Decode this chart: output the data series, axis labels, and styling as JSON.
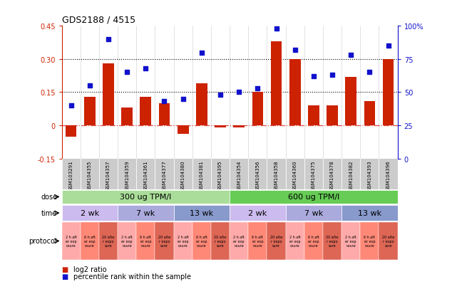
{
  "title": "GDS2188 / 4515",
  "samples": [
    "GSM103291",
    "GSM104355",
    "GSM104357",
    "GSM104359",
    "GSM104361",
    "GSM104377",
    "GSM104380",
    "GSM104381",
    "GSM104395",
    "GSM104354",
    "GSM104356",
    "GSM104358",
    "GSM104360",
    "GSM104375",
    "GSM104378",
    "GSM104382",
    "GSM104393",
    "GSM104396"
  ],
  "log2_ratio": [
    -0.05,
    0.13,
    0.28,
    0.08,
    0.13,
    0.1,
    -0.04,
    0.19,
    -0.01,
    -0.01,
    0.15,
    0.38,
    0.3,
    0.09,
    0.09,
    0.22,
    0.11,
    0.3
  ],
  "percentile": [
    40,
    55,
    90,
    65,
    68,
    43,
    45,
    80,
    48,
    50,
    53,
    98,
    82,
    62,
    63,
    78,
    65,
    85
  ],
  "bar_color": "#cc2200",
  "dot_color": "#1111cc",
  "zero_line_color": "#cc0000",
  "hline_color": "black",
  "yticks_left": [
    -0.15,
    0.0,
    0.15,
    0.3,
    0.45
  ],
  "ytick_labels_left": [
    "-0.15",
    "0",
    "0.15",
    "0.30",
    "0.45"
  ],
  "yticks_right": [
    0,
    25,
    50,
    75,
    100
  ],
  "ytick_labels_right": [
    "0",
    "25",
    "50",
    "75",
    "100%"
  ],
  "dose_spans": [
    [
      0,
      8,
      "300 ug TPM/l",
      "#aadd99"
    ],
    [
      9,
      17,
      "600 ug TPM/l",
      "#66cc55"
    ]
  ],
  "time_spans": [
    [
      0,
      2,
      "2 wk",
      "#ccbbee"
    ],
    [
      3,
      5,
      "7 wk",
      "#aaaadd"
    ],
    [
      6,
      8,
      "13 wk",
      "#8899cc"
    ],
    [
      9,
      11,
      "2 wk",
      "#ccbbee"
    ],
    [
      12,
      14,
      "7 wk",
      "#aaaadd"
    ],
    [
      15,
      17,
      "13 wk",
      "#8899cc"
    ]
  ],
  "protocol_labels": [
    "2 h aft\ner exp\nosure",
    "6 h aft\ner exp\nosure",
    "20 afte\nr expo\nsure",
    "2 h aft\ner exp\nosure",
    "6 h aft\ner exp\nosure",
    "20 afte\nr expo\nsure",
    "2 h aft\ner exp\nosure",
    "6 h aft\ner exp\nosure",
    "20 afte\nr expo\nsure",
    "2 h aft\ner exp\nosure",
    "6 h aft\ner exp\nosure",
    "20 afte\nr expo\nsure",
    "2 h aft\ner exp\nosure",
    "6 h aft\ner exp\nosure",
    "20 afte\nr expo\nsure",
    "2 h aft\ner exp\nosure",
    "6 h aft\ner exp\nosure",
    "20 afte\nr expo\nsure"
  ],
  "protocol_colors": [
    "#ffaaaa",
    "#ff8877",
    "#dd6655",
    "#ffaaaa",
    "#ff8877",
    "#dd6655",
    "#ffaaaa",
    "#ff8877",
    "#dd6655",
    "#ffaaaa",
    "#ff8877",
    "#dd6655",
    "#ffaaaa",
    "#ff8877",
    "#dd6655",
    "#ffaaaa",
    "#ff8877",
    "#dd6655"
  ],
  "legend_items": [
    "log2 ratio",
    "percentile rank within the sample"
  ],
  "legend_colors": [
    "#cc2200",
    "#1111cc"
  ],
  "bg_color": "#ffffff"
}
